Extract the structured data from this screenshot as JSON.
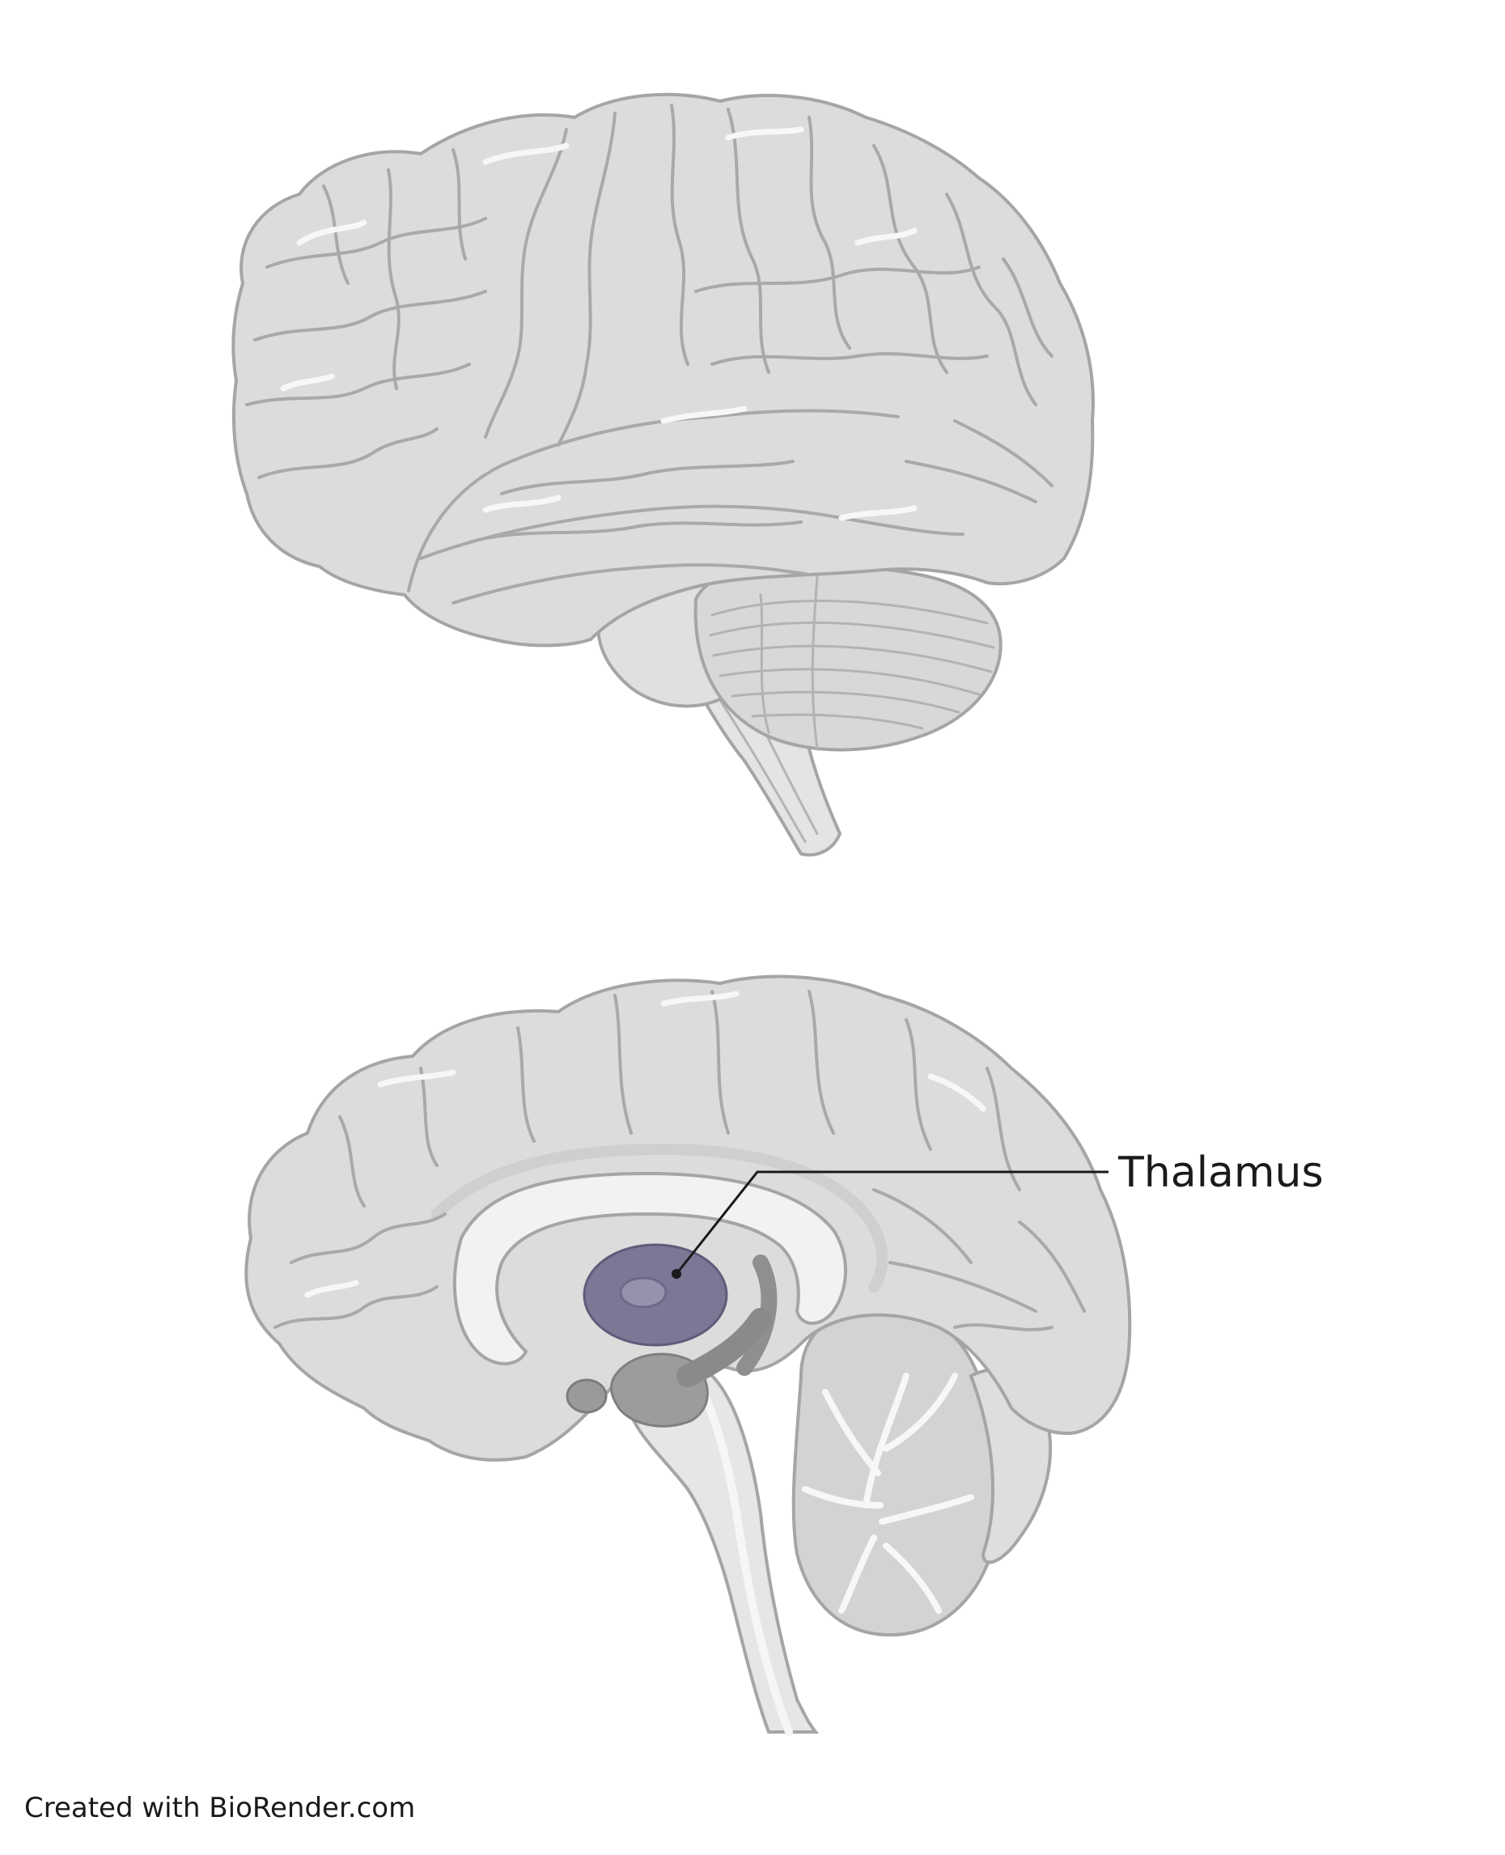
{
  "labels": {
    "thalamus": "Thalamus"
  },
  "credit": "Created with BioRender.com",
  "colors": {
    "background": "#ffffff",
    "brain_fill": "#dcdcdc",
    "brain_outline": "#a5a5a5",
    "brainstem_fill": "#e6e6e6",
    "white_matter": "#f2f2f2",
    "thalamus_fill": "#7b7896",
    "thalamus_inner": "#9592ad",
    "hypothalamus_fill": "#9c9c9c",
    "label_line": "#1a1a1a"
  }
}
